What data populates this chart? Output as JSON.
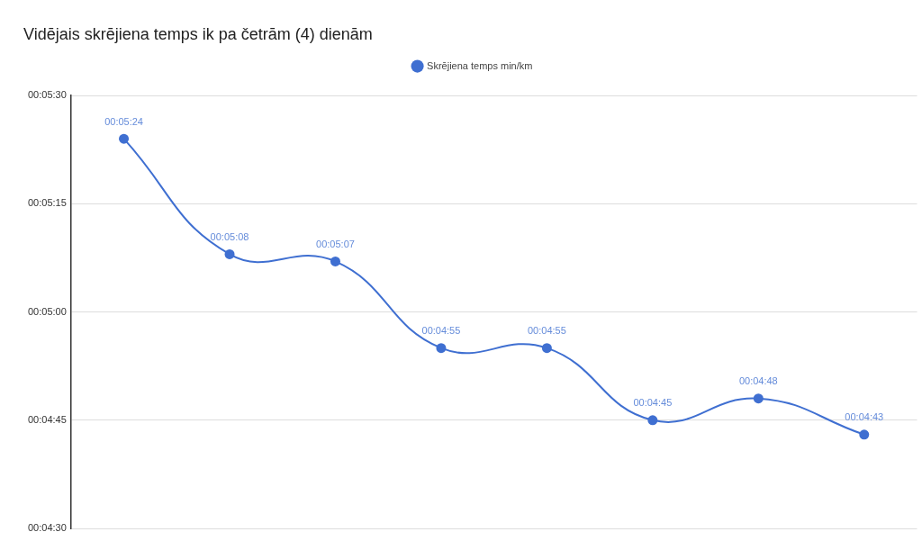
{
  "chart_data": {
    "type": "line",
    "title": "Vidējais skrējiena temps ik pa četrām (4) dienām",
    "categories": [
      null,
      null,
      null,
      null,
      null,
      null,
      null,
      null
    ],
    "series": [
      {
        "name": "Skrējiena temps min/km",
        "color": "#3f6fd1",
        "values": [
          324,
          308,
          307,
          295,
          295,
          285,
          288,
          283
        ],
        "value_labels": [
          "00:05:24",
          "00:05:08",
          "00:05:07",
          "00:04:55",
          "00:04:55",
          "00:04:45",
          "00:04:48",
          "00:04:43"
        ]
      }
    ],
    "ylim": [
      270,
      330
    ],
    "yticks": [
      {
        "value": 270,
        "label": "00:04:30"
      },
      {
        "value": 285,
        "label": "00:04:45"
      },
      {
        "value": 300,
        "label": "00:05:00"
      },
      {
        "value": 315,
        "label": "00:05:15"
      },
      {
        "value": 330,
        "label": "00:05:30"
      }
    ],
    "grid": "y",
    "legend": "top",
    "marker": "circle",
    "tick_labels": "y"
  }
}
